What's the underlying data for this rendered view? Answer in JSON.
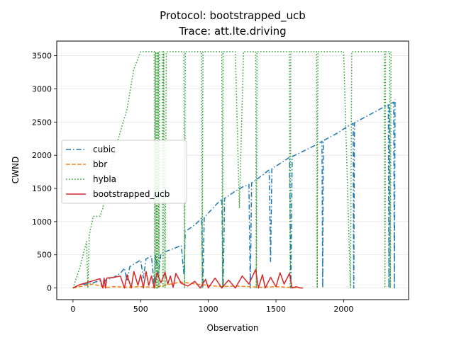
{
  "chart_data": {
    "type": "line",
    "title_lines": [
      "Protocol: bootstrapped_ucb",
      "Trace: att.lte.driving"
    ],
    "xlabel": "Observation",
    "ylabel": "CWND",
    "xlim": [
      -120,
      2480
    ],
    "ylim": [
      -175,
      3720
    ],
    "xticks": [
      0,
      500,
      1000,
      1500,
      2000
    ],
    "yticks": [
      0,
      500,
      1000,
      1500,
      2000,
      2500,
      3000,
      3500
    ],
    "grid": true,
    "legend_position": "center-left",
    "series": [
      {
        "name": "cubic",
        "color": "#1f77b4",
        "dash": "dashdot",
        "points": [
          [
            0,
            0
          ],
          [
            50,
            50
          ],
          [
            100,
            60
          ],
          [
            150,
            80
          ],
          [
            200,
            110
          ],
          [
            220,
            0
          ],
          [
            240,
            120
          ],
          [
            300,
            160
          ],
          [
            350,
            220
          ],
          [
            380,
            300
          ],
          [
            400,
            100
          ],
          [
            420,
            320
          ],
          [
            450,
            360
          ],
          [
            500,
            420
          ],
          [
            520,
            150
          ],
          [
            540,
            440
          ],
          [
            580,
            480
          ],
          [
            600,
            50
          ],
          [
            610,
            500
          ],
          [
            630,
            200
          ],
          [
            650,
            520
          ],
          [
            700,
            560
          ],
          [
            750,
            600
          ],
          [
            800,
            640
          ],
          [
            820,
            200
          ],
          [
            830,
            850
          ],
          [
            900,
            950
          ],
          [
            950,
            1050
          ],
          [
            960,
            0
          ],
          [
            970,
            1060
          ],
          [
            1000,
            1130
          ],
          [
            1050,
            1240
          ],
          [
            1100,
            1340
          ],
          [
            1110,
            0
          ],
          [
            1120,
            1350
          ],
          [
            1200,
            1460
          ],
          [
            1250,
            1520
          ],
          [
            1300,
            1560
          ],
          [
            1310,
            0
          ],
          [
            1320,
            1580
          ],
          [
            1400,
            1700
          ],
          [
            1450,
            1780
          ],
          [
            1460,
            400
          ],
          [
            1470,
            1800
          ],
          [
            1550,
            1900
          ],
          [
            1600,
            1970
          ],
          [
            1610,
            0
          ],
          [
            1620,
            1980
          ],
          [
            1700,
            2060
          ],
          [
            1800,
            2160
          ],
          [
            1840,
            2210
          ],
          [
            1845,
            0
          ],
          [
            1850,
            2220
          ],
          [
            1950,
            2330
          ],
          [
            2050,
            2460
          ],
          [
            2070,
            2480
          ],
          [
            2075,
            0
          ],
          [
            2080,
            2490
          ],
          [
            2200,
            2620
          ],
          [
            2300,
            2730
          ],
          [
            2330,
            2760
          ],
          [
            2335,
            0
          ],
          [
            2340,
            2770
          ],
          [
            2370,
            2800
          ],
          [
            2375,
            0
          ],
          [
            2380,
            2840
          ]
        ]
      },
      {
        "name": "bbr",
        "color": "#ff7f0e",
        "dash": "dashed",
        "points": [
          [
            0,
            0
          ],
          [
            50,
            20
          ],
          [
            100,
            40
          ],
          [
            150,
            60
          ],
          [
            200,
            30
          ],
          [
            250,
            10
          ],
          [
            300,
            20
          ],
          [
            400,
            10
          ],
          [
            500,
            20
          ],
          [
            600,
            10
          ],
          [
            700,
            50
          ],
          [
            800,
            90
          ],
          [
            900,
            60
          ],
          [
            1000,
            40
          ],
          [
            1100,
            20
          ],
          [
            1200,
            30
          ],
          [
            1300,
            20
          ],
          [
            1400,
            10
          ],
          [
            1500,
            20
          ],
          [
            1600,
            10
          ],
          [
            1700,
            0
          ]
        ]
      },
      {
        "name": "hybla",
        "color": "#2ca02c",
        "dash": "dotted",
        "points": [
          [
            0,
            0
          ],
          [
            50,
            300
          ],
          [
            100,
            700
          ],
          [
            110,
            0
          ],
          [
            120,
            800
          ],
          [
            150,
            1080
          ],
          [
            200,
            1080
          ],
          [
            220,
            1200
          ],
          [
            300,
            2000
          ],
          [
            400,
            2700
          ],
          [
            450,
            3300
          ],
          [
            500,
            3560
          ],
          [
            560,
            3560
          ],
          [
            600,
            3560
          ],
          [
            605,
            0
          ],
          [
            610,
            3560
          ],
          [
            615,
            0
          ],
          [
            620,
            3560
          ],
          [
            625,
            0
          ],
          [
            630,
            3560
          ],
          [
            635,
            0
          ],
          [
            640,
            3560
          ],
          [
            660,
            3560
          ],
          [
            665,
            0
          ],
          [
            670,
            3560
          ],
          [
            680,
            0
          ],
          [
            690,
            3560
          ],
          [
            820,
            3560
          ],
          [
            825,
            0
          ],
          [
            830,
            3560
          ],
          [
            950,
            3560
          ],
          [
            955,
            0
          ],
          [
            960,
            3560
          ],
          [
            1100,
            3560
          ],
          [
            1105,
            0
          ],
          [
            1110,
            3560
          ],
          [
            1200,
            3560
          ],
          [
            1230,
            1200
          ],
          [
            1260,
            3560
          ],
          [
            1350,
            3560
          ],
          [
            1355,
            0
          ],
          [
            1360,
            3560
          ],
          [
            1600,
            3560
          ],
          [
            1605,
            0
          ],
          [
            1610,
            3560
          ],
          [
            1800,
            3560
          ],
          [
            1805,
            0
          ],
          [
            1810,
            3560
          ],
          [
            2000,
            3560
          ],
          [
            2050,
            0
          ],
          [
            2060,
            3560
          ],
          [
            2300,
            3560
          ],
          [
            2305,
            0
          ],
          [
            2310,
            3560
          ],
          [
            2340,
            3560
          ],
          [
            2345,
            0
          ],
          [
            2350,
            3560
          ]
        ]
      },
      {
        "name": "bootstrapped_ucb",
        "color": "#d62728",
        "dash": "solid",
        "points": [
          [
            0,
            0
          ],
          [
            50,
            50
          ],
          [
            100,
            80
          ],
          [
            150,
            110
          ],
          [
            200,
            140
          ],
          [
            220,
            0
          ],
          [
            230,
            150
          ],
          [
            240,
            0
          ],
          [
            250,
            150
          ],
          [
            300,
            160
          ],
          [
            350,
            180
          ],
          [
            380,
            0
          ],
          [
            400,
            200
          ],
          [
            430,
            0
          ],
          [
            450,
            250
          ],
          [
            480,
            40
          ],
          [
            500,
            200
          ],
          [
            520,
            0
          ],
          [
            540,
            250
          ],
          [
            560,
            40
          ],
          [
            580,
            180
          ],
          [
            600,
            0
          ],
          [
            620,
            230
          ],
          [
            650,
            80
          ],
          [
            680,
            240
          ],
          [
            700,
            60
          ],
          [
            720,
            180
          ],
          [
            740,
            10
          ],
          [
            760,
            220
          ],
          [
            800,
            70
          ],
          [
            850,
            30
          ],
          [
            900,
            100
          ],
          [
            940,
            0
          ],
          [
            980,
            130
          ],
          [
            1000,
            0
          ],
          [
            1050,
            150
          ],
          [
            1100,
            0
          ],
          [
            1150,
            120
          ],
          [
            1200,
            0
          ],
          [
            1250,
            180
          ],
          [
            1300,
            60
          ],
          [
            1350,
            280
          ],
          [
            1370,
            0
          ],
          [
            1400,
            200
          ],
          [
            1420,
            0
          ],
          [
            1460,
            160
          ],
          [
            1500,
            20
          ],
          [
            1530,
            230
          ],
          [
            1560,
            60
          ],
          [
            1600,
            220
          ],
          [
            1620,
            0
          ],
          [
            1650,
            20
          ],
          [
            1680,
            0
          ],
          [
            1700,
            0
          ]
        ]
      }
    ]
  }
}
